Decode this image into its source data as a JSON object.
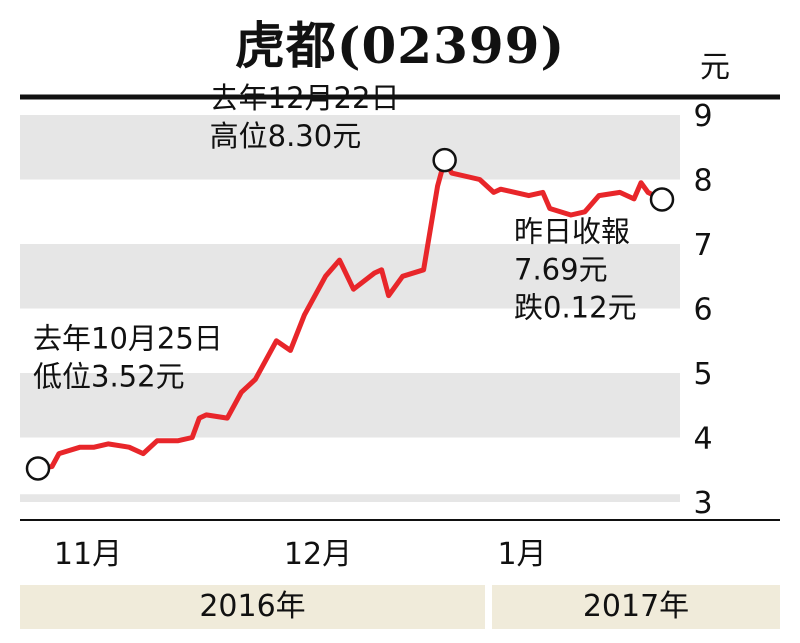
{
  "header": {
    "title": "虎都(02399)",
    "unit": "元"
  },
  "colors": {
    "line": "#e8262a",
    "band": "#e6e6e6",
    "year_band": "#f0ebda"
  },
  "chart_data": {
    "type": "line",
    "title": "虎都(02399)",
    "ylabel": "元",
    "ylim": [
      3,
      9
    ],
    "yticks": [
      "3",
      "4",
      "5",
      "6",
      "7",
      "8",
      "9"
    ],
    "xlim": [
      "2016-10-25",
      "2017-01-22"
    ],
    "month_labels": [
      {
        "label": "11月",
        "date": "2016-11-01"
      },
      {
        "label": "12月",
        "date": "2016-12-01"
      },
      {
        "label": "1月",
        "date": "2017-01-01"
      }
    ],
    "year_labels": [
      "2016年",
      "2017年"
    ],
    "grid": "alternating horizontal bands",
    "series": [
      {
        "x": [
          "2016-10-25",
          "2016-10-27",
          "2016-10-28",
          "2016-10-31",
          "2016-11-02",
          "2016-11-04",
          "2016-11-07",
          "2016-11-09",
          "2016-11-11",
          "2016-11-14",
          "2016-11-16",
          "2016-11-17",
          "2016-11-18",
          "2016-11-21",
          "2016-11-23",
          "2016-11-25",
          "2016-11-28",
          "2016-11-30",
          "2016-12-02",
          "2016-12-05",
          "2016-12-07",
          "2016-12-09",
          "2016-12-12",
          "2016-12-13",
          "2016-12-14",
          "2016-12-16",
          "2016-12-19",
          "2016-12-21",
          "2016-12-22",
          "2016-12-23",
          "2016-12-27",
          "2016-12-29",
          "2016-12-30",
          "2017-01-03",
          "2017-01-05",
          "2017-01-06",
          "2017-01-09",
          "2017-01-11",
          "2017-01-13",
          "2017-01-16",
          "2017-01-18",
          "2017-01-19",
          "2017-01-20",
          "2017-01-22"
        ],
        "values": [
          3.52,
          3.55,
          3.75,
          3.85,
          3.85,
          3.9,
          3.85,
          3.75,
          3.95,
          3.95,
          4.0,
          4.3,
          4.35,
          4.3,
          4.7,
          4.9,
          5.5,
          5.35,
          5.9,
          6.5,
          6.75,
          6.3,
          6.55,
          6.6,
          6.2,
          6.5,
          6.6,
          7.9,
          8.3,
          8.1,
          8.0,
          7.8,
          7.85,
          7.75,
          7.8,
          7.55,
          7.45,
          7.5,
          7.75,
          7.8,
          7.7,
          7.95,
          7.8,
          7.69
        ]
      }
    ],
    "annotations": [
      {
        "date": "2016-12-22",
        "value": 8.3,
        "lines": [
          "去年12月22日",
          "高位8.30元"
        ]
      },
      {
        "date": "2016-10-25",
        "value": 3.52,
        "lines": [
          "去年10月25日",
          "低位3.52元"
        ]
      },
      {
        "date": "2017-01-22",
        "value": 7.69,
        "lines": [
          "昨日收報",
          "7.69元",
          "跌0.12元"
        ]
      }
    ]
  }
}
